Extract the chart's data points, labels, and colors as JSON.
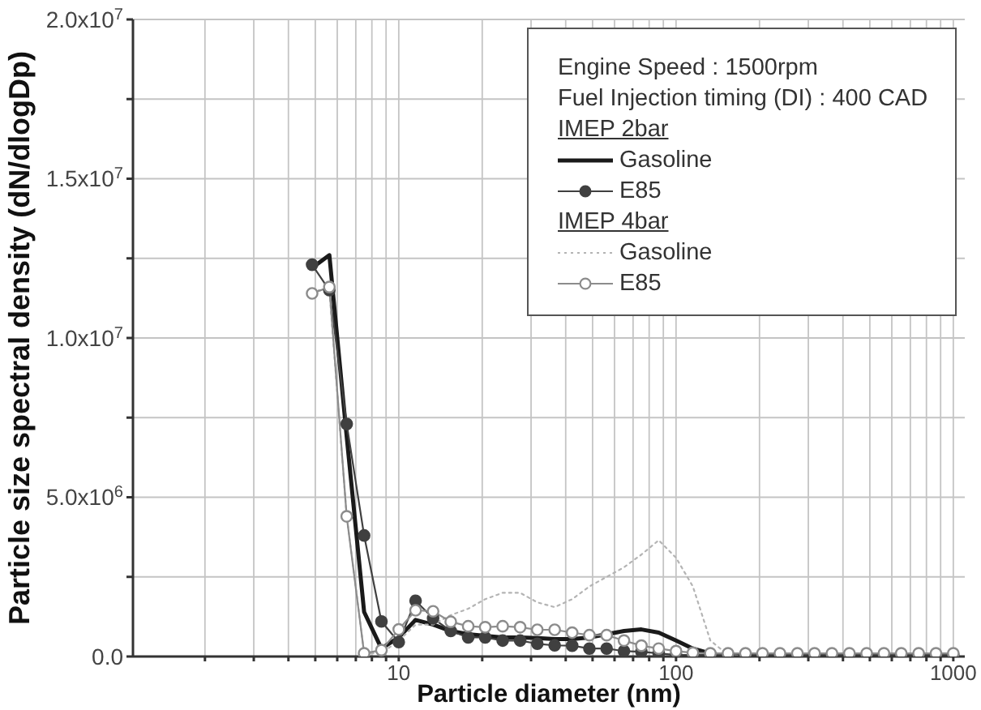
{
  "chart_data": {
    "type": "line",
    "xlabel": "Particle diameter (nm)",
    "ylabel": "Particle size spectral density (dN/dlogDp)",
    "annotations": [
      "Engine Speed : 1500rpm",
      "Fuel Injection timing (DI) : 400 CAD",
      "IMEP 2bar",
      "IMEP 4bar"
    ],
    "log": "x",
    "xlim": [
      1.1,
      1100
    ],
    "xticks": [
      {
        "value": 2,
        "label": null
      },
      {
        "value": 3,
        "label": null
      },
      {
        "value": 4,
        "label": null
      },
      {
        "value": 5,
        "label": null
      },
      {
        "value": 6,
        "label": null
      },
      {
        "value": 7,
        "label": null
      },
      {
        "value": 8,
        "label": null
      },
      {
        "value": 9,
        "label": null
      },
      10,
      {
        "value": 20,
        "label": null
      },
      {
        "value": 30,
        "label": null
      },
      {
        "value": 40,
        "label": null
      },
      {
        "value": 50,
        "label": null
      },
      {
        "value": 60,
        "label": null
      },
      {
        "value": 70,
        "label": null
      },
      {
        "value": 80,
        "label": null
      },
      {
        "value": 90,
        "label": null
      },
      100,
      {
        "value": 200,
        "label": null
      },
      {
        "value": 300,
        "label": null
      },
      {
        "value": 400,
        "label": null
      },
      {
        "value": 500,
        "label": null
      },
      {
        "value": 600,
        "label": null
      },
      {
        "value": 700,
        "label": null
      },
      {
        "value": 800,
        "label": null
      },
      {
        "value": 900,
        "label": null
      },
      1000
    ],
    "ylim": [
      0,
      20000000
    ],
    "yticks": [
      {
        "value": 0,
        "label": "0.0"
      },
      {
        "value": 2500000,
        "label": null
      },
      {
        "value": 5000000,
        "label": "5.0x10$^{6}$"
      },
      {
        "value": 7500000,
        "label": null
      },
      {
        "value": 10000000,
        "label": "1.0x10$^{7}$"
      },
      {
        "value": 12500000,
        "label": null
      },
      {
        "value": 15000000,
        "label": "1.5x10$^{7}$"
      },
      {
        "value": 17500000,
        "label": null
      },
      {
        "value": 20000000,
        "label": "2.0x10$^{7}$"
      }
    ],
    "grid": true,
    "legend": "top right",
    "x": [
      4.87,
      5.62,
      6.49,
      7.5,
      8.66,
      10,
      11.5,
      13.3,
      15.4,
      17.8,
      20.5,
      23.7,
      27.4,
      31.6,
      36.5,
      42.2,
      48.7,
      56.2,
      64.9,
      75,
      86.6,
      100,
      115,
      133,
      154,
      178,
      205,
      237,
      274,
      316,
      365,
      422,
      487,
      562,
      649,
      750,
      866,
      1000
    ],
    "series": [
      {
        "name": "Gasoline",
        "color": "#1a1a1a",
        "marker": "none",
        "line_style": "solid",
        "values": [
          12200000,
          12600000,
          6900000,
          1400000,
          250000,
          600000,
          1150000,
          1000000,
          800000,
          700000,
          650000,
          600000,
          600000,
          580000,
          550000,
          550000,
          600000,
          700000,
          800000,
          850000,
          750000,
          500000,
          250000,
          100000,
          0,
          0,
          0,
          0,
          0,
          0,
          0,
          0,
          0,
          0,
          0,
          0,
          0,
          0
        ]
      },
      {
        "name": "E85",
        "color": "#404040",
        "marker": "circle",
        "line_style": "solid",
        "values": [
          12300000,
          11500000,
          7300000,
          3800000,
          1100000,
          450000,
          1750000,
          1200000,
          800000,
          600000,
          600000,
          500000,
          500000,
          400000,
          350000,
          340000,
          250000,
          250000,
          170000,
          150000,
          100000,
          50000,
          50000,
          50000,
          50000,
          50000,
          50000,
          50000,
          50000,
          50000,
          50000,
          50000,
          50000,
          50000,
          50000,
          50000,
          50000,
          50000
        ]
      },
      {
        "name": "Gasoline",
        "color": "#b4b4b4",
        "marker": "none",
        "line_style": "dotted",
        "values": [
          11500000,
          11500000,
          4400000,
          100000,
          100000,
          500000,
          1000000,
          1000000,
          1300000,
          1500000,
          1800000,
          2000000,
          2000000,
          1700000,
          1550000,
          1800000,
          2200000,
          2500000,
          2800000,
          3200000,
          3650000,
          3100000,
          2200000,
          500000,
          50000,
          0,
          0,
          0,
          0,
          0,
          0,
          0,
          0,
          0,
          0,
          0,
          0,
          0
        ]
      },
      {
        "name": "E85",
        "color": "#8c8c8c",
        "marker": "circle",
        "line_style": "solid",
        "values": [
          11400000,
          11600000,
          4400000,
          100000,
          200000,
          850000,
          1450000,
          1420000,
          1090000,
          950000,
          920000,
          950000,
          920000,
          840000,
          840000,
          750000,
          670000,
          670000,
          500000,
          340000,
          250000,
          170000,
          120000,
          100000,
          100000,
          100000,
          100000,
          100000,
          100000,
          100000,
          100000,
          100000,
          100000,
          100000,
          100000,
          100000,
          100000,
          100000
        ]
      }
    ]
  }
}
